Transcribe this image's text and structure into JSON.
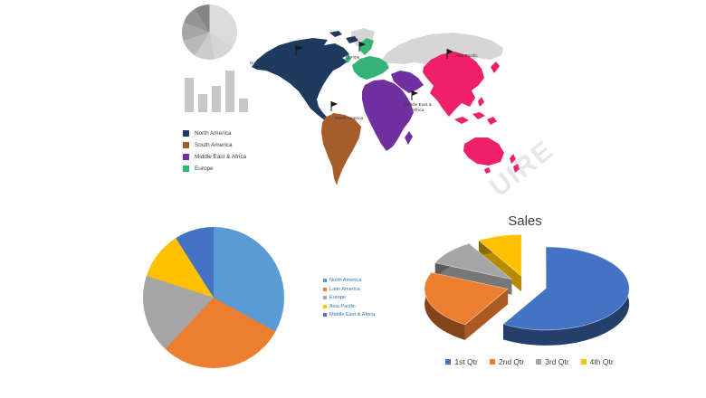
{
  "watermark": "UIRE",
  "map": {
    "region_colors": {
      "north_america": "#1f3a5f",
      "south_america": "#a75d2b",
      "europe": "#36b477",
      "middle_east_africa": "#7030a0",
      "asia_pacific": "#ed2069",
      "neutral": "#d6d6d6"
    },
    "labels": {
      "north_america": "North America",
      "south_america": "South America",
      "europe": "Europe",
      "asia_pacific": "Asia Pacific",
      "middle_east_africa_line1": "Middle East &",
      "middle_east_africa_line2": "Africa"
    },
    "legend": [
      {
        "label": "North America",
        "color": "#1f3a5f"
      },
      {
        "label": "South America",
        "color": "#a75d2b"
      },
      {
        "label": "Middle East & Africa",
        "color": "#7030a0"
      },
      {
        "label": "Europe",
        "color": "#36b477"
      }
    ]
  },
  "chart_data": [
    {
      "id": "regional-share-pie",
      "type": "pie",
      "title": "",
      "categories": [
        "North America",
        "Latin America",
        "Europe",
        "Asia Pacific",
        "Middle East & Africa"
      ],
      "values": [
        33,
        29,
        18,
        11,
        9
      ],
      "colors": [
        "#5b9bd5",
        "#ed7d31",
        "#a5a5a5",
        "#ffc000",
        "#4472c4"
      ],
      "legend_position": "right",
      "legend_text_color": "#2e74b5",
      "start_angle_deg": 0
    },
    {
      "id": "sales-3d-pie",
      "type": "pie",
      "style": "3d-exploded",
      "title": "Sales",
      "categories": [
        "1st Qtr",
        "2nd Qtr",
        "3rd Qtr",
        "4th Qtr"
      ],
      "values": [
        8.2,
        3.2,
        1.4,
        1.2
      ],
      "colors": [
        "#4472c4",
        "#ed7d31",
        "#a5a5a5",
        "#ffc000"
      ],
      "legend_position": "bottom",
      "start_angle_deg": 0
    },
    {
      "id": "thumbnail-gray-pie",
      "type": "pie",
      "title": "",
      "categories": [
        "",
        "",
        "",
        "",
        "",
        "",
        ""
      ],
      "values": [
        34,
        13,
        12,
        11,
        11,
        10,
        9
      ],
      "colors": [
        "#dcdcdc",
        "#d5d5d5",
        "#cbcbcb",
        "#b9b9b9",
        "#a6a6a6",
        "#949494",
        "#858585"
      ]
    },
    {
      "id": "thumbnail-gray-bars",
      "type": "bar",
      "title": "",
      "categories": [
        "",
        "",
        "",
        "",
        ""
      ],
      "values": [
        82,
        43,
        63,
        100,
        33
      ],
      "color": "#c7c7c7"
    }
  ]
}
